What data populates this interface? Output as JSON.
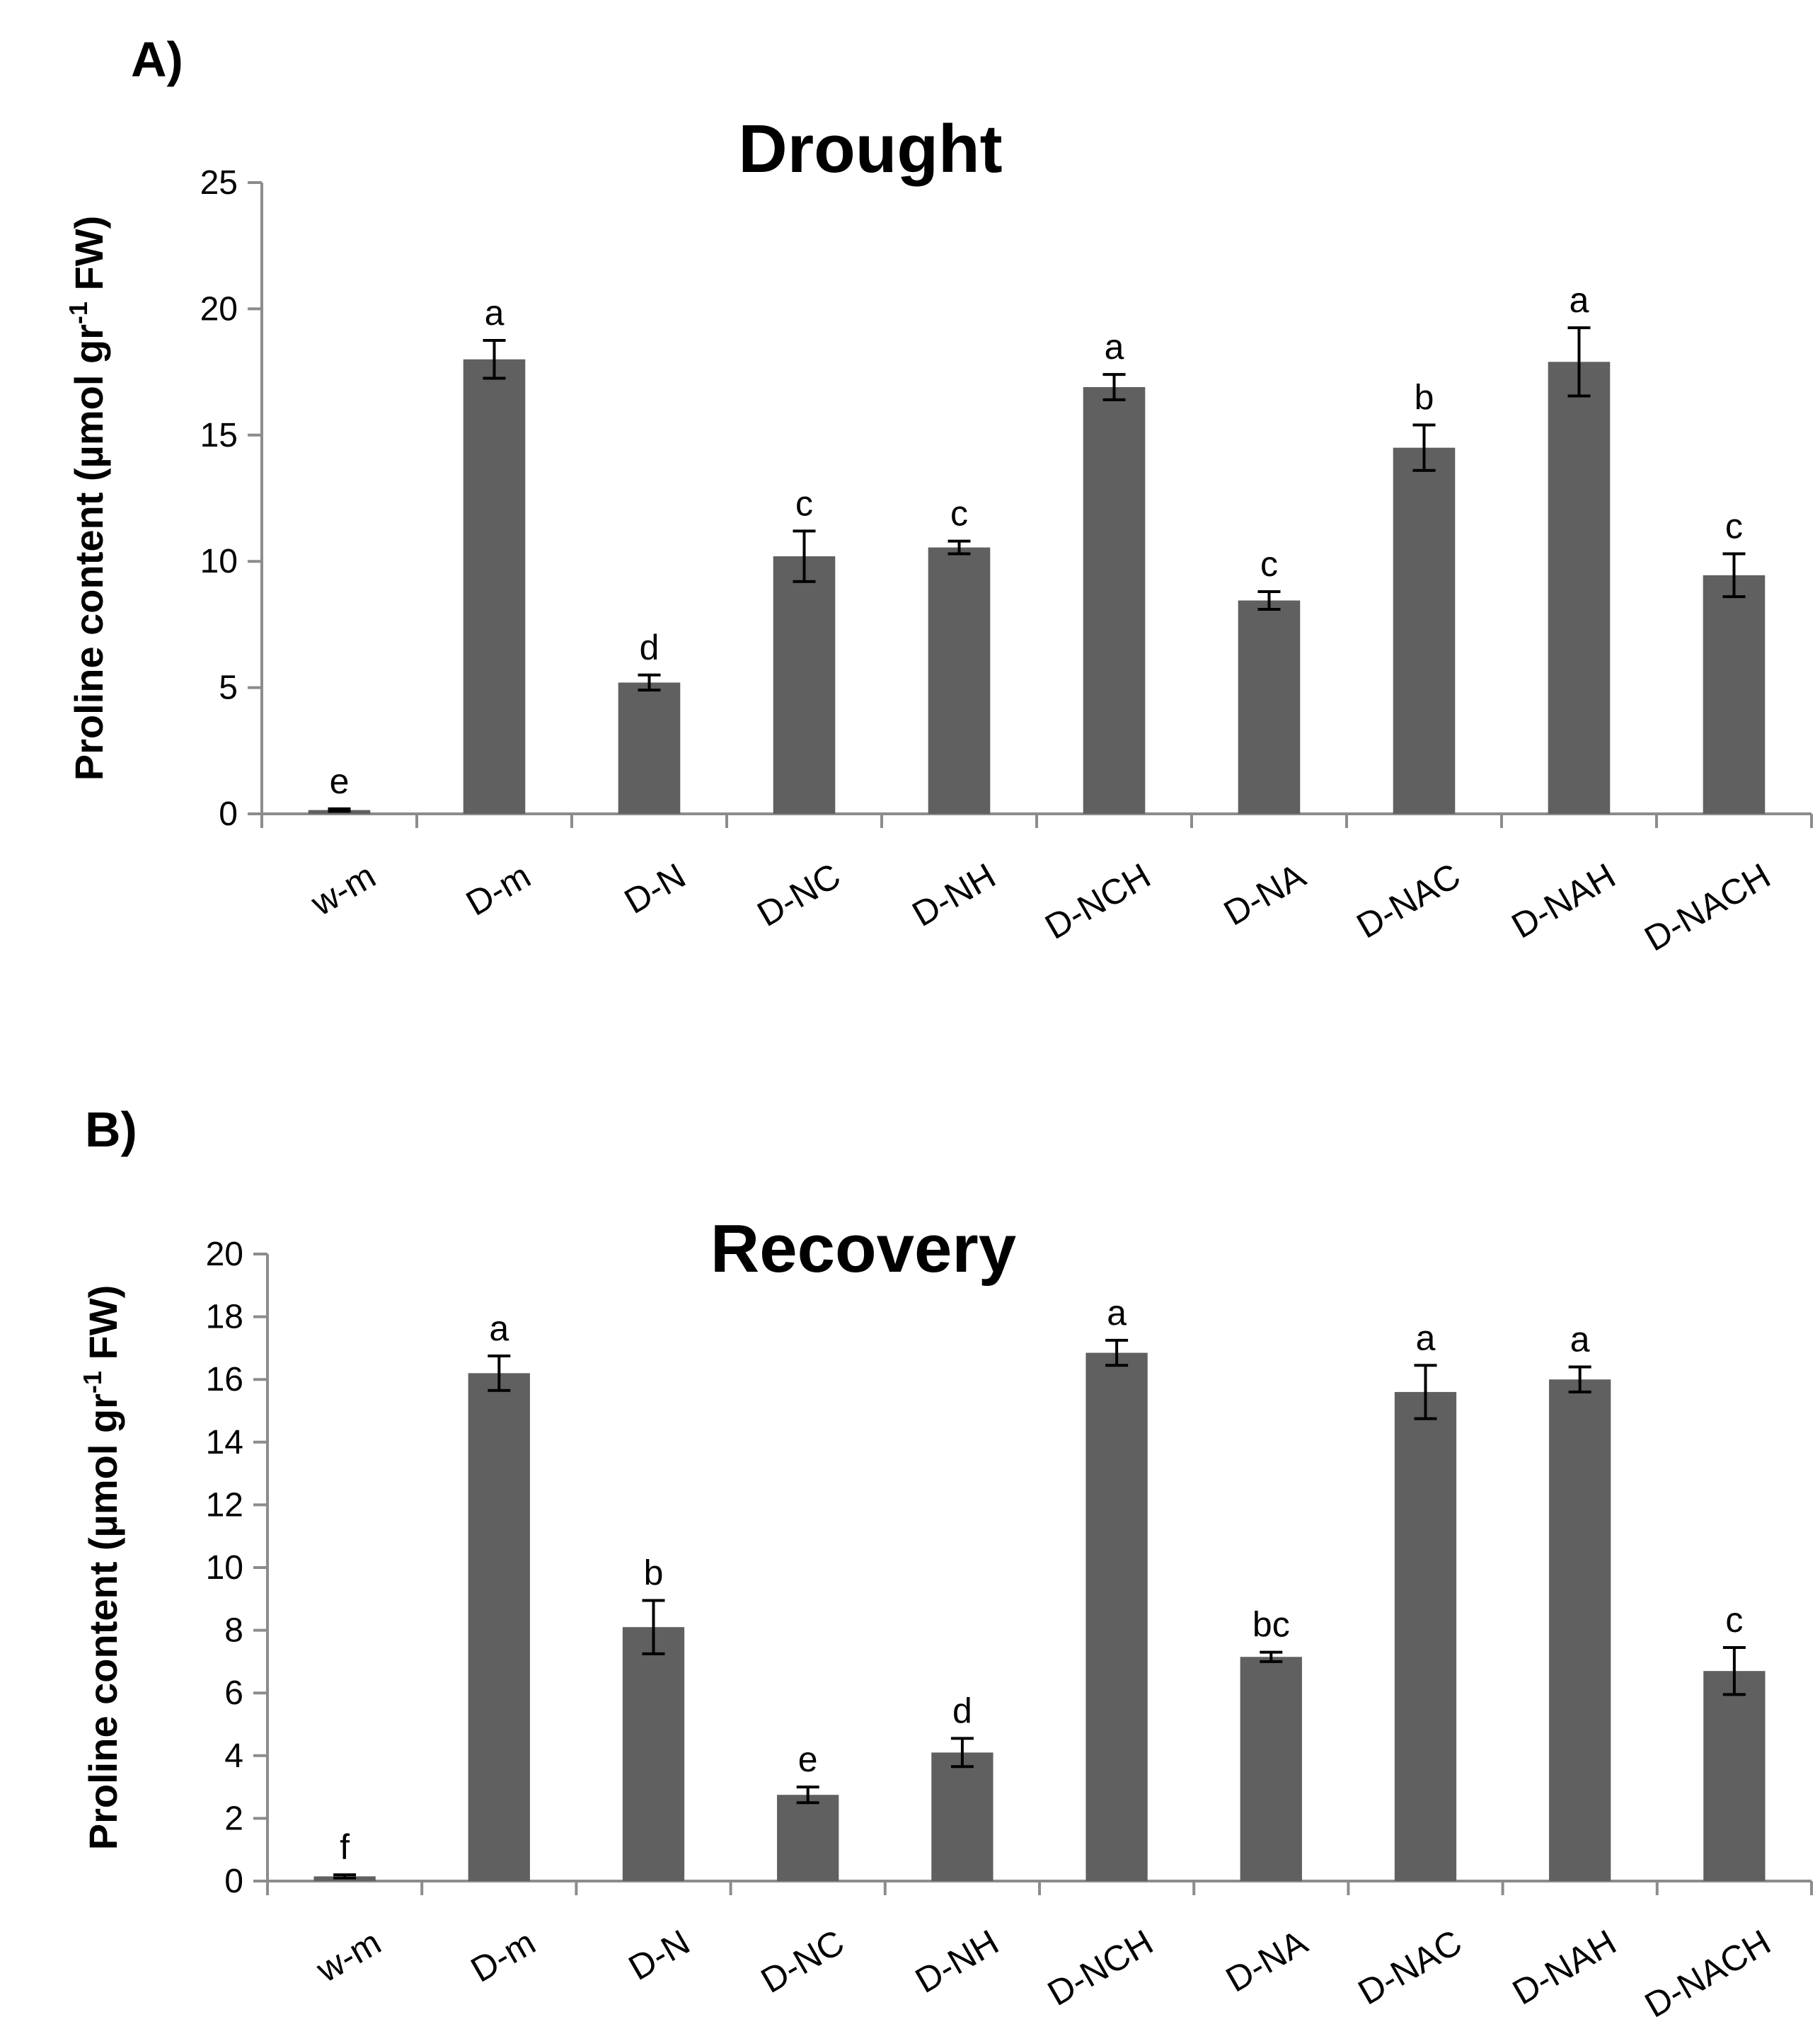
{
  "chart_data": [
    {
      "type": "bar",
      "panel": "A)",
      "title": "Drought",
      "ylabel": "Proline content (µmol gr-1 FW)",
      "ylabel_parts": {
        "pre": "Proline content (µmol gr",
        "sup": "-1",
        "post": " FW)"
      },
      "xlabel": "",
      "ylim": [
        0,
        25
      ],
      "yticks": [
        0,
        5,
        10,
        15,
        20,
        25
      ],
      "grid": false,
      "categories": [
        "w-m",
        "D-m",
        "D-N",
        "D-NC",
        "D-NH",
        "D-NCH",
        "D-NA",
        "D-NAC",
        "D-NAH",
        "D-NACH"
      ],
      "values": [
        0.15,
        18.0,
        5.2,
        10.2,
        10.55,
        16.9,
        8.45,
        14.5,
        17.9,
        9.45
      ],
      "errors": [
        0.05,
        0.75,
        0.3,
        1.0,
        0.25,
        0.5,
        0.35,
        0.9,
        1.35,
        0.85
      ],
      "significance": [
        "e",
        "a",
        "d",
        "c",
        "c",
        "a",
        "c",
        "b",
        "a",
        "c"
      ]
    },
    {
      "type": "bar",
      "panel": "B)",
      "title": "Recovery",
      "ylabel": "Proline content (µmol gr-1 FW)",
      "ylabel_parts": {
        "pre": "Proline content (µmol gr",
        "sup": "-1",
        "post": " FW)"
      },
      "xlabel": "",
      "ylim": [
        0,
        20
      ],
      "yticks": [
        0,
        2,
        4,
        6,
        8,
        10,
        12,
        14,
        16,
        18,
        20
      ],
      "grid": false,
      "categories": [
        "w-m",
        "D-m",
        "D-N",
        "D-NC",
        "D-NH",
        "D-NCH",
        "D-NA",
        "D-NAC",
        "D-NAH",
        "D-NACH"
      ],
      "values": [
        0.15,
        16.2,
        8.1,
        2.75,
        4.1,
        16.85,
        7.15,
        15.6,
        16.0,
        6.7
      ],
      "errors": [
        0.05,
        0.55,
        0.85,
        0.25,
        0.45,
        0.4,
        0.15,
        0.85,
        0.4,
        0.75
      ],
      "significance": [
        "f",
        "a",
        "b",
        "e",
        "d",
        "a",
        "bc",
        "a",
        "a",
        "c"
      ]
    }
  ]
}
